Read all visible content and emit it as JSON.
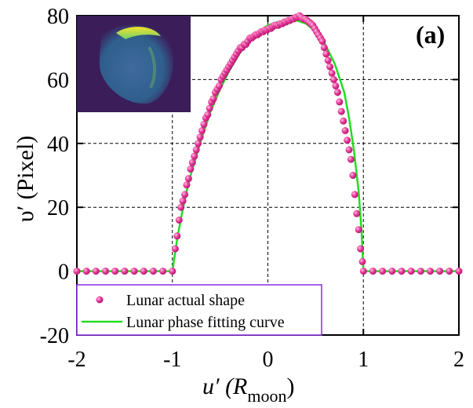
{
  "chart_data": {
    "type": "scatter",
    "panel_label": "(a)",
    "xlabel": "u′ (R",
    "xlabel_sub": "moon",
    "xlabel_close": ")",
    "ylabel": "υ′ (Pixel)",
    "xlim": [
      -2,
      2
    ],
    "ylim": [
      -20,
      80
    ],
    "xticks": [
      "-2",
      "-1",
      "0",
      "1",
      "2"
    ],
    "yticks": [
      "-20",
      "0",
      "20",
      "40",
      "60",
      "80"
    ],
    "grid": "dashed gridlines at x = -1, 0, 1 and y = 20, 40, 60",
    "legend_position": "bottom-left",
    "inset": "false-color image of lunar crescent, top-left",
    "colors": {
      "points": "#e0288c",
      "curve": "#22dd22",
      "legend_border": "#8a2be2",
      "inset_bg": "#3b1d5a"
    },
    "series": [
      {
        "name": "Lunar actual shape",
        "kind": "scatter",
        "x": [
          -2.0,
          -1.9,
          -1.8,
          -1.7,
          -1.6,
          -1.5,
          -1.4,
          -1.3,
          -1.2,
          -1.1,
          -1.0,
          -0.97,
          -0.95,
          -0.93,
          -0.91,
          -0.89,
          -0.87,
          -0.85,
          -0.83,
          -0.81,
          -0.79,
          -0.77,
          -0.75,
          -0.73,
          -0.71,
          -0.69,
          -0.67,
          -0.65,
          -0.63,
          -0.61,
          -0.59,
          -0.57,
          -0.55,
          -0.53,
          -0.51,
          -0.49,
          -0.47,
          -0.45,
          -0.43,
          -0.41,
          -0.39,
          -0.37,
          -0.35,
          -0.33,
          -0.31,
          -0.29,
          -0.27,
          -0.25,
          -0.23,
          -0.21,
          -0.19,
          -0.17,
          -0.15,
          -0.13,
          -0.11,
          -0.09,
          -0.07,
          -0.05,
          -0.03,
          -0.01,
          0.01,
          0.03,
          0.05,
          0.07,
          0.09,
          0.11,
          0.13,
          0.15,
          0.17,
          0.19,
          0.21,
          0.23,
          0.25,
          0.27,
          0.29,
          0.31,
          0.33,
          0.35,
          0.37,
          0.39,
          0.41,
          0.43,
          0.45,
          0.47,
          0.49,
          0.51,
          0.53,
          0.55,
          0.57,
          0.59,
          0.61,
          0.63,
          0.65,
          0.67,
          0.69,
          0.71,
          0.73,
          0.75,
          0.77,
          0.79,
          0.81,
          0.83,
          0.85,
          0.87,
          0.89,
          0.91,
          0.93,
          0.95,
          0.97,
          0.99,
          1.0,
          1.1,
          1.2,
          1.3,
          1.4,
          1.5,
          1.6,
          1.7,
          1.8,
          1.9,
          2.0
        ],
        "y": [
          0,
          0,
          0,
          0,
          0,
          0,
          0,
          0,
          0,
          0,
          0,
          7,
          11,
          16,
          20,
          22,
          24,
          27,
          29,
          32,
          34,
          36,
          38,
          40,
          42,
          44,
          46,
          48,
          49,
          51,
          53,
          54,
          56,
          57,
          58,
          60,
          61,
          62,
          63,
          64,
          65,
          66,
          67,
          68,
          69,
          70,
          70,
          71,
          71,
          72,
          73,
          73,
          73.5,
          74,
          74,
          74.5,
          75,
          75,
          75.5,
          75.5,
          76,
          76,
          76.5,
          77,
          77,
          77,
          77.5,
          77.5,
          78,
          78,
          78.5,
          78.5,
          79,
          79,
          79.5,
          79.5,
          80,
          79.5,
          79,
          79,
          78.5,
          78,
          77.5,
          77,
          76,
          75,
          74,
          73,
          72,
          70,
          68,
          66,
          64,
          62,
          60,
          58,
          56,
          53,
          50,
          47,
          44,
          41,
          38,
          35,
          30,
          24,
          18,
          13,
          7,
          3,
          0,
          0,
          0,
          0,
          0,
          0,
          0,
          0,
          0,
          0,
          0
        ]
      },
      {
        "name": "Lunar phase fitting curve",
        "kind": "line",
        "x": [
          -2.0,
          -1.0,
          -0.95,
          -0.9,
          -0.85,
          -0.8,
          -0.7,
          -0.6,
          -0.5,
          -0.4,
          -0.3,
          -0.2,
          -0.1,
          0.0,
          0.1,
          0.2,
          0.3,
          0.4,
          0.5,
          0.6,
          0.7,
          0.8,
          0.85,
          0.9,
          0.95,
          0.98,
          1.0,
          2.0
        ],
        "y": [
          0,
          0,
          10,
          18,
          25,
          31,
          41,
          50,
          57,
          63,
          68,
          72,
          75,
          77,
          78,
          78.5,
          78.5,
          77.5,
          75,
          71,
          65,
          56,
          48,
          38,
          25,
          13,
          0,
          0
        ]
      }
    ]
  }
}
